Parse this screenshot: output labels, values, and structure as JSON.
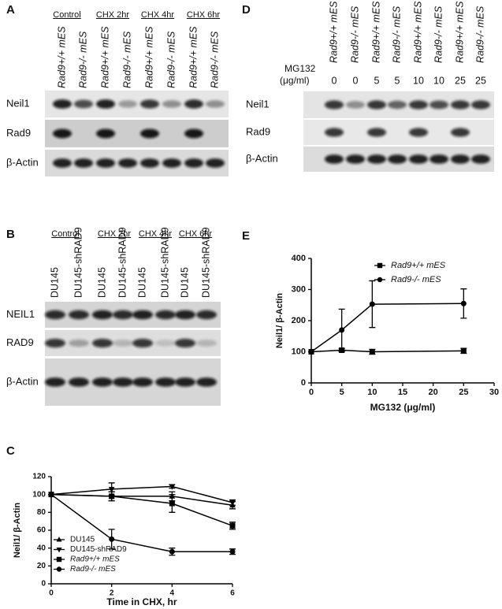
{
  "panels": {
    "A": {
      "label": "A",
      "groups": [
        "Control",
        "CHX 2hr",
        "CHX 4hr",
        "CHX 6hr"
      ],
      "lanes": [
        "Rad9+/+ mES",
        "Rad9-/- mES",
        "Rad9+/+ mES",
        "Rad9-/- mES",
        "Rad9+/+ mES",
        "Rad9-/- mES",
        "Rad9+/+ mES",
        "Rad9-/- mES"
      ],
      "rows": [
        "Neil1",
        "Rad9",
        "β-Actin"
      ]
    },
    "B": {
      "label": "B",
      "groups": [
        "Control",
        "CHX 2hr",
        "CHX 4hr",
        "CHX 6hr"
      ],
      "lanes": [
        "DU145",
        "DU145-shRAD9",
        "DU145",
        "DU145-shRAD9",
        "DU145",
        "DU145-shRAD9",
        "DU145",
        "DU145-shRAD9"
      ],
      "rows": [
        "NEIL1",
        "RAD9",
        "β-Actin"
      ]
    },
    "D": {
      "label": "D",
      "dose_label": "MG132",
      "dose_unit": "(μg/ml)",
      "lanes": [
        "Rad9+/+ mES",
        "Rad9-/- mES",
        "Rad9+/+ mES",
        "Rad9-/- mES",
        "Rad9+/+ mES",
        "Rad9-/- mES",
        "Rad9+/+ mES",
        "Rad9-/- mES"
      ],
      "doses": [
        0,
        0,
        5,
        5,
        10,
        10,
        25,
        25
      ],
      "rows": [
        "Neil1",
        "Rad9",
        "β-Actin"
      ]
    }
  },
  "chart_data": [
    {
      "type": "line",
      "panel_label": "C",
      "y_label": "Neil1/ β-Actin",
      "x_label": "Time in CHX, hr",
      "x": [
        0,
        2,
        4,
        6
      ],
      "xlim": [
        0,
        6
      ],
      "xticks": [
        0,
        2,
        4,
        6
      ],
      "ylim": [
        0,
        120
      ],
      "yticks": [
        0,
        20,
        40,
        60,
        80,
        100,
        120
      ],
      "legend": "lower left",
      "series": [
        {
          "name": "DU145",
          "marker": "triangle-up",
          "color": "#000000",
          "values": [
            100,
            98,
            98,
            88
          ],
          "errors": [
            0,
            5,
            5,
            4
          ]
        },
        {
          "name": "DU145-shRAD9",
          "marker": "triangle-down",
          "color": "#000000",
          "values": [
            100,
            106,
            109,
            91
          ],
          "errors": [
            0,
            7,
            2,
            3
          ]
        },
        {
          "name": "Rad9+/+ mES",
          "marker": "square",
          "color": "#000000",
          "values": [
            100,
            98,
            90,
            65
          ],
          "errors": [
            0,
            5,
            10,
            4
          ]
        },
        {
          "name": "Rad9-/- mES",
          "marker": "circle",
          "color": "#000000",
          "values": [
            100,
            50,
            36,
            36
          ],
          "errors": [
            0,
            11,
            4,
            3
          ]
        }
      ]
    },
    {
      "type": "line",
      "panel_label": "E",
      "y_label": "Neil1/ β-Actin",
      "x_label": "MG132 (μg/ml)",
      "x": [
        0,
        5,
        10,
        25
      ],
      "xlim": [
        0,
        30
      ],
      "xticks": [
        0,
        5,
        10,
        15,
        20,
        25,
        30
      ],
      "ylim": [
        0,
        400
      ],
      "yticks": [
        0,
        100,
        200,
        300,
        400
      ],
      "legend": "upper right",
      "series": [
        {
          "name": "Rad9+/+ mES",
          "marker": "square",
          "color": "#000000",
          "values": [
            100,
            105,
            100,
            103
          ],
          "errors": [
            0,
            5,
            8,
            8
          ]
        },
        {
          "name": "Rad9-/- mES",
          "marker": "circle",
          "color": "#000000",
          "values": [
            100,
            170,
            253,
            255
          ],
          "errors": [
            0,
            67,
            75,
            47
          ]
        }
      ]
    }
  ]
}
